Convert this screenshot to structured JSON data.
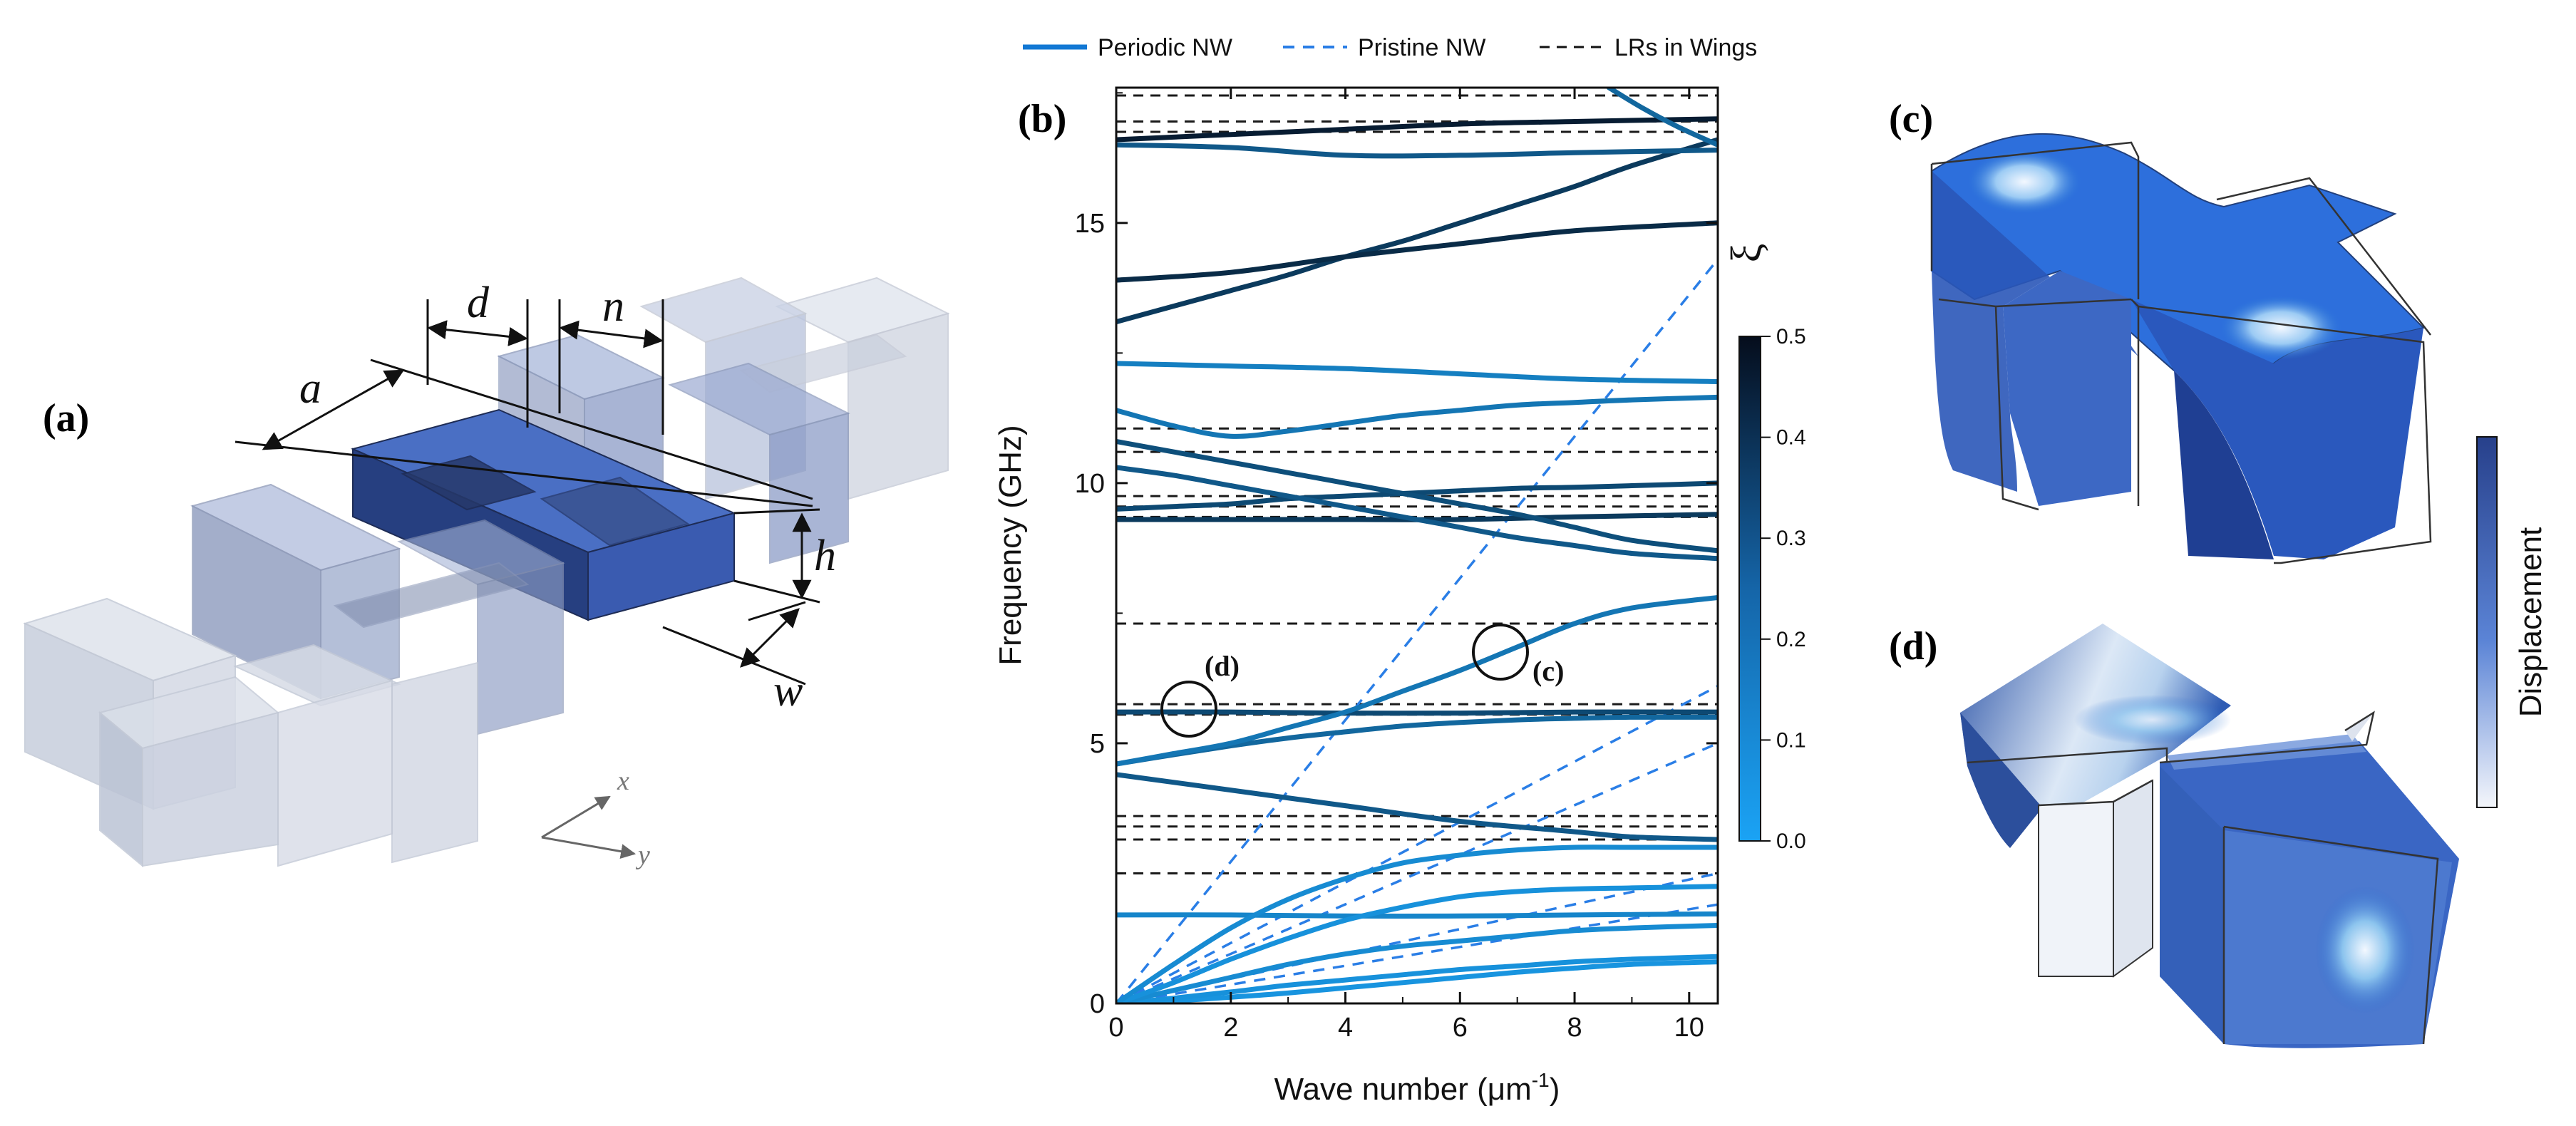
{
  "panels": {
    "a": {
      "label": "(a)",
      "dims": {
        "a": "a",
        "d": "d",
        "n": "n",
        "h": "h",
        "w": "w"
      },
      "axes": {
        "x": "x",
        "y": "y"
      }
    },
    "b": {
      "label": "(b)",
      "annot_c": "(c)",
      "annot_d": "(d)"
    },
    "c": {
      "label": "(c)"
    },
    "d": {
      "label": "(d)"
    }
  },
  "colorbar_xi": {
    "label": "ξ",
    "ticks": [
      "0.0",
      "0.1",
      "0.2",
      "0.3",
      "0.4",
      "0.5"
    ],
    "colors": {
      "low": "#1aa3f5",
      "high": "#050d1c"
    }
  },
  "colorbar_disp": {
    "label": "Displacement",
    "colors": {
      "low": "#f4f6fb",
      "high": "#27408b"
    }
  },
  "chart_data": {
    "type": "line",
    "title": "",
    "xlabel_prefix": "Wave number (",
    "xlabel_mu": "μm",
    "xlabel_sup": "-1",
    "xlabel_suffix": ")",
    "ylabel": "Frequency (GHz)",
    "xlim": [
      0,
      10.5
    ],
    "ylim": [
      0,
      17.6
    ],
    "xticks": [
      0,
      2,
      4,
      6,
      8,
      10
    ],
    "xtick_labels": [
      "0",
      "2",
      "4",
      "6",
      "8",
      "10"
    ],
    "yticks": [
      0,
      5,
      10,
      15
    ],
    "ytick_labels": [
      "0",
      "5",
      "10",
      "15"
    ],
    "legend": {
      "placement": "top",
      "entries": [
        "Periodic NW",
        "Pristine NW",
        "LRs in Wings"
      ]
    },
    "lr_lines": [
      2.5,
      3.15,
      3.4,
      3.6,
      5.55,
      5.75,
      7.3,
      9.35,
      9.55,
      9.75,
      10.6,
      11.05,
      16.75,
      16.95,
      17.45
    ],
    "pristine_lines": [
      {
        "x": [
          0,
          10.5
        ],
        "y": [
          0,
          14.3
        ]
      },
      {
        "x": [
          0,
          10.5
        ],
        "y": [
          0,
          6.1
        ]
      },
      {
        "x": [
          0,
          10.5
        ],
        "y": [
          0,
          5.0
        ]
      },
      {
        "x": [
          0,
          10.5
        ],
        "y": [
          0,
          2.5
        ]
      },
      {
        "x": [
          0,
          10.5
        ],
        "y": [
          0,
          1.9
        ]
      }
    ],
    "periodic_series": [
      {
        "xi": 0.05,
        "x": [
          0,
          1,
          2,
          3,
          4,
          5,
          6,
          7,
          8,
          9,
          10.5
        ],
        "y": [
          0,
          0.05,
          0.12,
          0.2,
          0.3,
          0.4,
          0.5,
          0.6,
          0.68,
          0.75,
          0.8
        ]
      },
      {
        "xi": 0.06,
        "x": [
          0,
          1,
          2,
          3,
          4,
          5,
          6,
          7,
          8,
          9,
          10.5
        ],
        "y": [
          0,
          0.1,
          0.22,
          0.35,
          0.45,
          0.55,
          0.65,
          0.72,
          0.8,
          0.85,
          0.9
        ]
      },
      {
        "xi": 0.08,
        "x": [
          0,
          1,
          2,
          3,
          4,
          5,
          6,
          7,
          8,
          9,
          10.5
        ],
        "y": [
          0,
          0.25,
          0.5,
          0.75,
          0.95,
          1.1,
          1.2,
          1.3,
          1.4,
          1.45,
          1.5
        ]
      },
      {
        "xi": 0.1,
        "x": [
          0,
          2,
          4,
          6,
          8,
          10.5
        ],
        "y": [
          1.7,
          1.7,
          1.68,
          1.68,
          1.7,
          1.72
        ]
      },
      {
        "xi": 0.06,
        "x": [
          0,
          1,
          2,
          3,
          4,
          5,
          6,
          7,
          8,
          9,
          10.5
        ],
        "y": [
          0,
          0.4,
          0.85,
          1.25,
          1.6,
          1.85,
          2.05,
          2.15,
          2.2,
          2.22,
          2.25
        ]
      },
      {
        "xi": 0.08,
        "x": [
          0,
          1,
          2,
          3,
          4,
          5,
          6,
          7,
          8,
          9,
          10.5
        ],
        "y": [
          0,
          0.75,
          1.45,
          2.0,
          2.4,
          2.7,
          2.85,
          2.95,
          3.0,
          3.0,
          3.0
        ]
      },
      {
        "xi": 0.25,
        "x": [
          0,
          2,
          4,
          6,
          8,
          9,
          10.5
        ],
        "y": [
          4.4,
          4.1,
          3.8,
          3.5,
          3.3,
          3.2,
          3.15
        ]
      },
      {
        "xi": 0.2,
        "x": [
          0,
          1,
          2,
          3,
          4,
          5,
          6,
          7,
          8,
          9,
          10.5
        ],
        "y": [
          4.6,
          4.78,
          4.95,
          5.1,
          5.22,
          5.33,
          5.4,
          5.45,
          5.48,
          5.5,
          5.5
        ]
      },
      {
        "xi": 0.3,
        "x": [
          0,
          2,
          4,
          6,
          8,
          10.5
        ],
        "y": [
          5.6,
          5.6,
          5.58,
          5.58,
          5.6,
          5.6
        ]
      },
      {
        "xi": 0.15,
        "x": [
          0,
          1,
          2,
          3,
          4,
          5,
          6,
          7,
          8,
          9,
          10.5
        ],
        "y": [
          4.6,
          4.8,
          5.0,
          5.3,
          5.6,
          6.0,
          6.4,
          6.85,
          7.3,
          7.6,
          7.8
        ]
      },
      {
        "xi": 0.35,
        "x": [
          0,
          2,
          4,
          6,
          8,
          10.5
        ],
        "y": [
          9.3,
          9.3,
          9.3,
          9.3,
          9.35,
          9.4
        ]
      },
      {
        "xi": 0.3,
        "x": [
          0,
          1,
          2,
          3,
          4,
          5,
          6,
          7,
          8,
          9,
          10.5
        ],
        "y": [
          9.5,
          9.55,
          9.6,
          9.7,
          9.75,
          9.8,
          9.85,
          9.9,
          9.92,
          9.95,
          10.0
        ]
      },
      {
        "xi": 0.25,
        "x": [
          0,
          1,
          2,
          3,
          4,
          5,
          6,
          7,
          8,
          9,
          10.5
        ],
        "y": [
          10.3,
          10.15,
          9.95,
          9.75,
          9.55,
          9.35,
          9.15,
          8.95,
          8.8,
          8.65,
          8.55
        ]
      },
      {
        "xi": 0.28,
        "x": [
          0,
          1,
          2,
          3,
          4,
          5,
          6,
          7,
          8,
          9,
          10.5
        ],
        "y": [
          10.8,
          10.6,
          10.4,
          10.2,
          10.0,
          9.8,
          9.6,
          9.4,
          9.15,
          8.9,
          8.7
        ]
      },
      {
        "xi": 0.15,
        "x": [
          0,
          1,
          2,
          3,
          4,
          5,
          6,
          7,
          8,
          9,
          10.5
        ],
        "y": [
          11.4,
          11.1,
          10.9,
          11.0,
          11.15,
          11.3,
          11.4,
          11.5,
          11.55,
          11.6,
          11.65
        ]
      },
      {
        "xi": 0.12,
        "x": [
          0,
          2,
          4,
          6,
          8,
          10.5
        ],
        "y": [
          12.3,
          12.25,
          12.2,
          12.1,
          12.0,
          11.95
        ]
      },
      {
        "xi": 0.35,
        "x": [
          0,
          1,
          2,
          3,
          4,
          5,
          6,
          7,
          8,
          9,
          10.5
        ],
        "y": [
          13.1,
          13.4,
          13.7,
          14.0,
          14.35,
          14.65,
          15.0,
          15.35,
          15.7,
          16.1,
          16.6
        ]
      },
      {
        "xi": 0.4,
        "x": [
          0,
          2,
          4,
          6,
          8,
          10.5
        ],
        "y": [
          13.9,
          14.05,
          14.35,
          14.6,
          14.85,
          15.0
        ]
      },
      {
        "xi": 0.25,
        "x": [
          0,
          2,
          4,
          6,
          8,
          10.5
        ],
        "y": [
          16.5,
          16.45,
          16.3,
          16.3,
          16.35,
          16.4
        ]
      },
      {
        "xi": 0.45,
        "x": [
          0,
          2,
          4,
          6,
          8,
          10.5
        ],
        "y": [
          16.6,
          16.7,
          16.8,
          16.9,
          16.95,
          17.0
        ]
      },
      {
        "xi": 0.2,
        "x": [
          8.6,
          9.2,
          9.8,
          10.5
        ],
        "y": [
          17.6,
          17.2,
          16.85,
          16.5
        ]
      }
    ]
  }
}
